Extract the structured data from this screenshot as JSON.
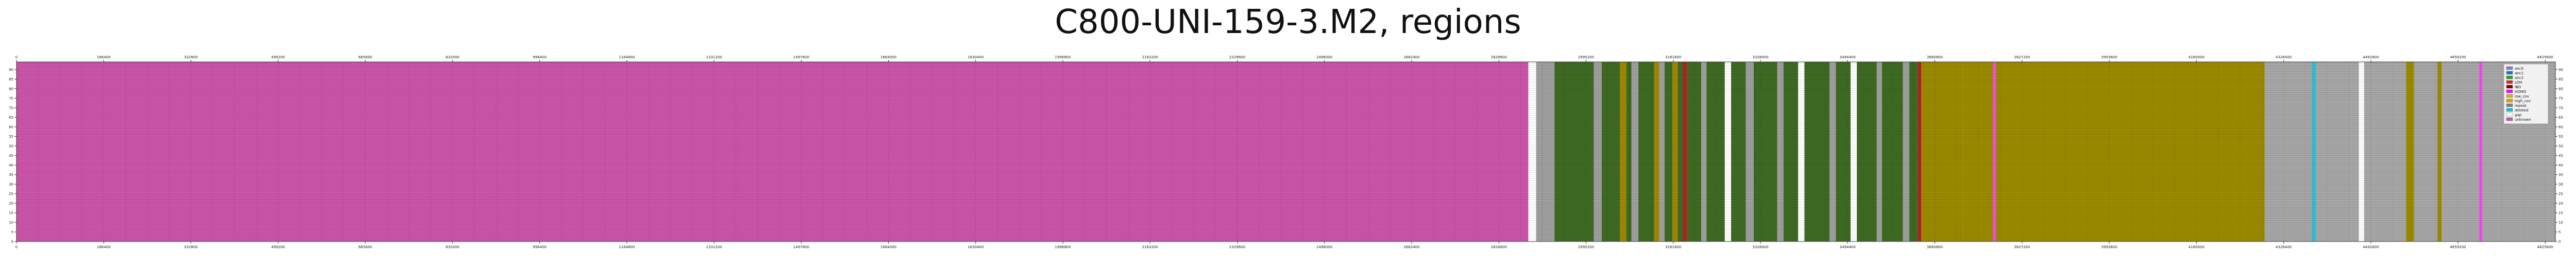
{
  "chart_data": {
    "type": "heatmap",
    "title": "C800-UNI-159-3.M2, regions",
    "xlim": [
      0,
      4845000
    ],
    "ylim": [
      0,
      94
    ],
    "x_tick_labels": [
      "0",
      "166400",
      "332800",
      "499200",
      "665600",
      "832000",
      "998400",
      "1164800",
      "1331200",
      "1497600",
      "1664000",
      "1830400",
      "1996800",
      "2163200",
      "2329600",
      "2496000",
      "2662400",
      "2828800",
      "2995200",
      "3161600",
      "3328000",
      "3494400",
      "3660800",
      "3827200",
      "3993600",
      "4160000",
      "4326400",
      "4492800",
      "4659200",
      "4825600"
    ],
    "y_tick_labels": [
      "0",
      "5",
      "10",
      "15",
      "20",
      "25",
      "30",
      "35",
      "40",
      "45",
      "50",
      "55",
      "60",
      "65",
      "70",
      "75",
      "80",
      "85",
      "90"
    ],
    "legend": {
      "placement": "right",
      "entries": [
        {
          "label": "anc0",
          "color": "#8A7BD8"
        },
        {
          "label": "anc1",
          "color": "#1F77B4"
        },
        {
          "label": "anc2",
          "color": "#2CA02C"
        },
        {
          "label": "LOH",
          "color": "#D62728"
        },
        {
          "label": "IBD",
          "color": "#7F0000"
        },
        {
          "label": "HOMO",
          "color": "#FF00FF"
        },
        {
          "label": "low_cov",
          "color": "#BCBD22"
        },
        {
          "label": "high_cov",
          "color": "#E0A000"
        },
        {
          "label": "repeat",
          "color": "#808080"
        },
        {
          "label": "deleted",
          "color": "#17BECF"
        },
        {
          "label": "gap",
          "color": "#FFFFFF"
        },
        {
          "label": "unknown",
          "color": "#CC55AA"
        }
      ]
    },
    "regions": [
      {
        "start": 0,
        "end": 2885000,
        "category": "unknown",
        "color": "#CC55AA"
      },
      {
        "start": 2885000,
        "end": 2900000,
        "category": "gap",
        "color": "#FFFFFF"
      },
      {
        "start": 2900000,
        "end": 2935000,
        "category": "repeat",
        "color": "#A0A0A0"
      },
      {
        "start": 2935000,
        "end": 3010000,
        "category": "anc2",
        "color": "#3E6B22"
      },
      {
        "start": 3010000,
        "end": 3025000,
        "category": "repeat",
        "color": "#A0A0A0"
      },
      {
        "start": 3025000,
        "end": 3060000,
        "category": "anc2",
        "color": "#3E6B22"
      },
      {
        "start": 3060000,
        "end": 3072000,
        "category": "high_cov",
        "color": "#A08800"
      },
      {
        "start": 3072000,
        "end": 3082000,
        "category": "anc2",
        "color": "#3E6B22"
      },
      {
        "start": 3082000,
        "end": 3095000,
        "category": "repeat",
        "color": "#A0A0A0"
      },
      {
        "start": 3095000,
        "end": 3125000,
        "category": "anc2",
        "color": "#3E6B22"
      },
      {
        "start": 3125000,
        "end": 3135000,
        "category": "high_cov",
        "color": "#A08800"
      },
      {
        "start": 3135000,
        "end": 3145000,
        "category": "repeat",
        "color": "#A0A0A0"
      },
      {
        "start": 3145000,
        "end": 3160000,
        "category": "anc2",
        "color": "#3E6B22"
      },
      {
        "start": 3160000,
        "end": 3170000,
        "category": "high_cov",
        "color": "#A08800"
      },
      {
        "start": 3170000,
        "end": 3180000,
        "category": "anc2",
        "color": "#3E6B22"
      },
      {
        "start": 3180000,
        "end": 3188000,
        "category": "LOH",
        "color": "#B22222"
      },
      {
        "start": 3188000,
        "end": 3215000,
        "category": "anc2",
        "color": "#3E6B22"
      },
      {
        "start": 3215000,
        "end": 3225000,
        "category": "repeat",
        "color": "#A0A0A0"
      },
      {
        "start": 3225000,
        "end": 3260000,
        "category": "anc2",
        "color": "#3E6B22"
      },
      {
        "start": 3260000,
        "end": 3272000,
        "category": "gap",
        "color": "#FFFFFF"
      },
      {
        "start": 3272000,
        "end": 3300000,
        "category": "anc2",
        "color": "#3E6B22"
      },
      {
        "start": 3300000,
        "end": 3315000,
        "category": "repeat",
        "color": "#A0A0A0"
      },
      {
        "start": 3315000,
        "end": 3360000,
        "category": "anc2",
        "color": "#3E6B22"
      },
      {
        "start": 3360000,
        "end": 3372000,
        "category": "repeat",
        "color": "#A0A0A0"
      },
      {
        "start": 3372000,
        "end": 3400000,
        "category": "anc2",
        "color": "#3E6B22"
      },
      {
        "start": 3400000,
        "end": 3412000,
        "category": "gap",
        "color": "#FFFFFF"
      },
      {
        "start": 3412000,
        "end": 3460000,
        "category": "anc2",
        "color": "#3E6B22"
      },
      {
        "start": 3460000,
        "end": 3472000,
        "category": "repeat",
        "color": "#A0A0A0"
      },
      {
        "start": 3472000,
        "end": 3500000,
        "category": "anc2",
        "color": "#3E6B22"
      },
      {
        "start": 3500000,
        "end": 3512000,
        "category": "gap",
        "color": "#FFFFFF"
      },
      {
        "start": 3512000,
        "end": 3550000,
        "category": "anc2",
        "color": "#3E6B22"
      },
      {
        "start": 3550000,
        "end": 3560000,
        "category": "repeat",
        "color": "#A0A0A0"
      },
      {
        "start": 3560000,
        "end": 3600000,
        "category": "anc2",
        "color": "#3E6B22"
      },
      {
        "start": 3600000,
        "end": 3612000,
        "category": "repeat",
        "color": "#A0A0A0"
      },
      {
        "start": 3612000,
        "end": 3628000,
        "category": "anc2",
        "color": "#3E6B22"
      },
      {
        "start": 3628000,
        "end": 3635000,
        "category": "LOH",
        "color": "#B22222"
      },
      {
        "start": 3635000,
        "end": 3715000,
        "category": "high_cov",
        "color": "#9C8A00"
      },
      {
        "start": 3715000,
        "end": 3772000,
        "category": "high_cov",
        "color": "#9C8A00"
      },
      {
        "start": 3772000,
        "end": 3777000,
        "category": "HOMO",
        "color": "#FF40FF"
      },
      {
        "start": 3777000,
        "end": 4290000,
        "category": "high_cov",
        "color": "#9C8A00"
      },
      {
        "start": 4290000,
        "end": 4380000,
        "category": "repeat",
        "color": "#A8A8A8"
      },
      {
        "start": 4380000,
        "end": 4388000,
        "category": "deleted",
        "color": "#30C0D0"
      },
      {
        "start": 4388000,
        "end": 4470000,
        "category": "repeat",
        "color": "#A8A8A8"
      },
      {
        "start": 4470000,
        "end": 4480000,
        "category": "gap",
        "color": "#FFFFFF"
      },
      {
        "start": 4480000,
        "end": 4560000,
        "category": "repeat",
        "color": "#A8A8A8"
      },
      {
        "start": 4560000,
        "end": 4575000,
        "category": "high_cov",
        "color": "#9C8A00"
      },
      {
        "start": 4575000,
        "end": 4620000,
        "category": "repeat",
        "color": "#A8A8A8"
      },
      {
        "start": 4620000,
        "end": 4628000,
        "category": "high_cov",
        "color": "#9C8A00"
      },
      {
        "start": 4628000,
        "end": 4700000,
        "category": "repeat",
        "color": "#A8A8A8"
      },
      {
        "start": 4700000,
        "end": 4705000,
        "category": "HOMO",
        "color": "#FF40FF"
      },
      {
        "start": 4705000,
        "end": 4845000,
        "category": "repeat",
        "color": "#A8A8A8"
      }
    ],
    "grid": true
  }
}
